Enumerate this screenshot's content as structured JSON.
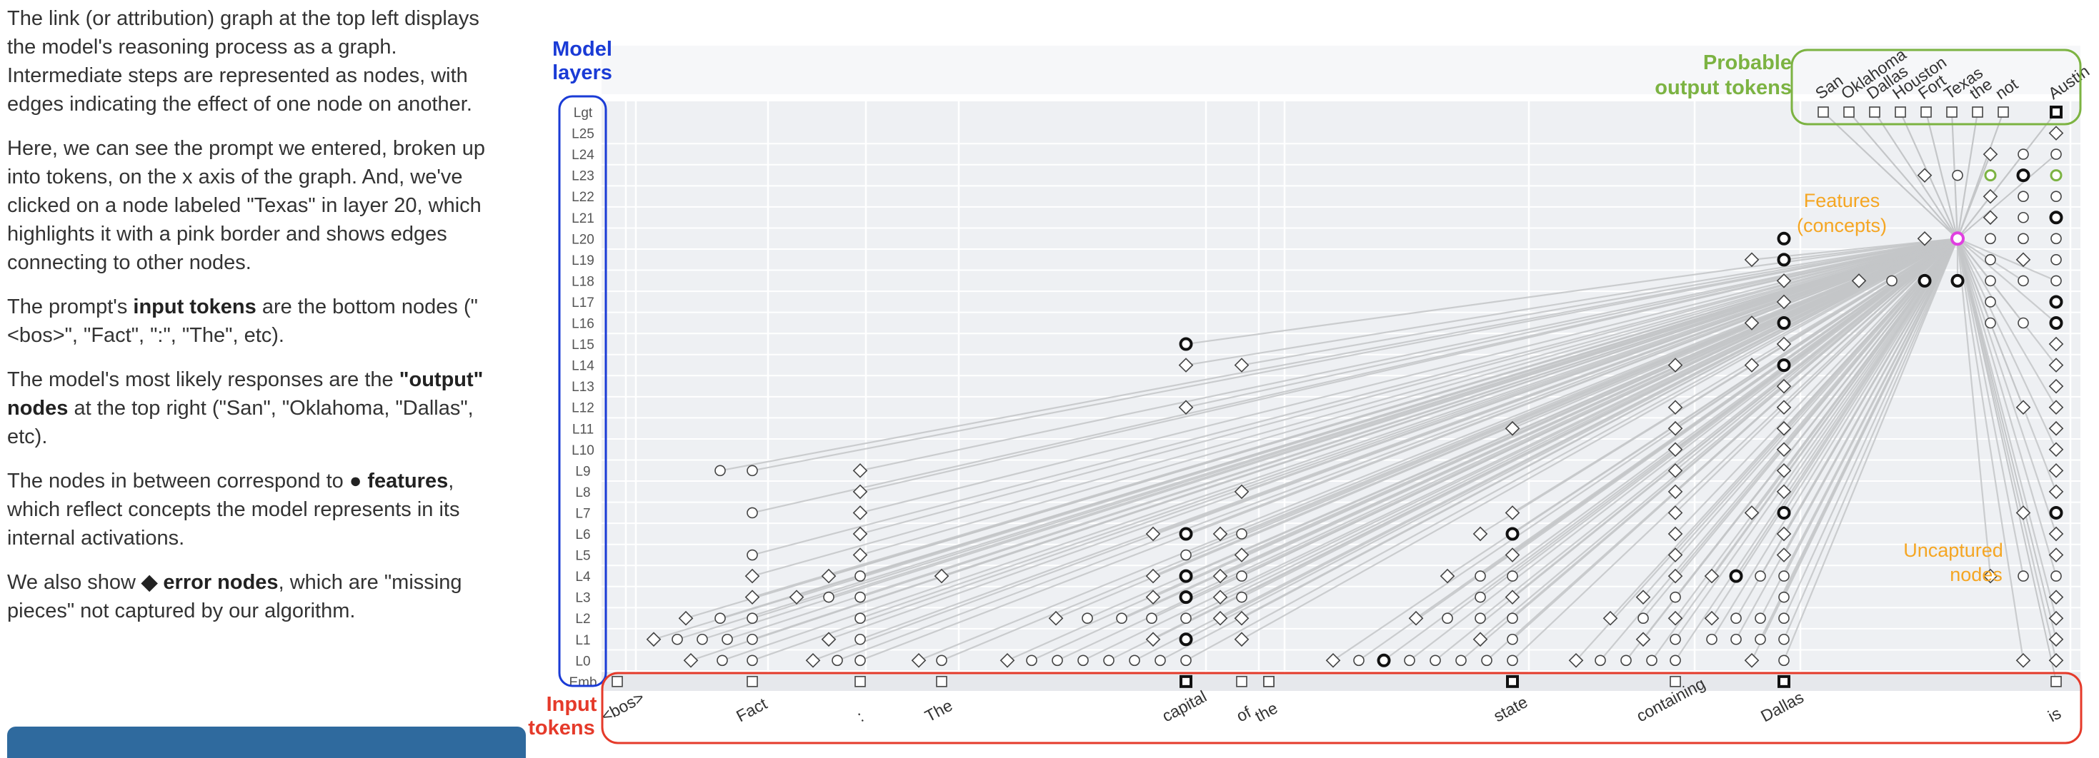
{
  "explanation": {
    "p1": "The link (or attribution) graph at the top left displays the model's reasoning process as a graph. Intermediate steps are represented as nodes, with edges indicating the effect of one node on another.",
    "p2": "Here, we can see the prompt we entered, broken up into tokens, on the x axis of the graph. And, we've clicked on a node labeled \"Texas\" in layer 20, which highlights it with a pink border and shows edges connecting to other nodes.",
    "p3_a": "The prompt's ",
    "p3_b": "input tokens",
    "p3_c": " are the bottom nodes (\"<bos>\", \"Fact\", \":\", \"The\", etc).",
    "p4_a": "The model's most likely responses are the ",
    "p4_b": "\"output\" nodes",
    "p4_c": " at the top right (\"San\", \"Oklahoma, \"Dallas\", etc).",
    "p5_a": "The nodes in between correspond to ",
    "p5_b": "● features",
    "p5_c": ", which reflect concepts the model represents in its internal activations.",
    "p6_a": "We also show ",
    "p6_b": "◆ error nodes",
    "p6_c": ", which are \"missing pieces\" not captured by our algorithm."
  },
  "button": {
    "label": ""
  },
  "annotations": {
    "model_layers": [
      "Model",
      "layers"
    ],
    "probable_output": [
      "Probable",
      "output tokens"
    ],
    "features": [
      "Features",
      "(concepts)"
    ],
    "uncaptured": [
      "Uncaptured",
      "nodes"
    ],
    "input_tokens": [
      "Input",
      "tokens"
    ]
  },
  "colors": {
    "blue": "#1a3bd6",
    "green": "#7cb342",
    "orange": "#f5a623",
    "red": "#e53a2a",
    "selected": "#e040e0"
  },
  "graph": {
    "layers": [
      "Lgt",
      "L25",
      "L24",
      "L23",
      "L22",
      "L21",
      "L20",
      "L19",
      "L18",
      "L17",
      "L16",
      "L15",
      "L14",
      "L13",
      "L12",
      "L11",
      "L10",
      "L9",
      "L8",
      "L7",
      "L6",
      "L5",
      "L4",
      "L3",
      "L2",
      "L1",
      "L0",
      "Emb"
    ],
    "input_tokens": [
      "<bos>",
      "Fact",
      ":",
      "The",
      "capital",
      "of",
      "the",
      "state",
      "containing",
      "Dallas",
      "is"
    ],
    "output_tokens": [
      "San",
      "Oklahoma",
      "Dallas",
      "Houston",
      "Fort",
      "Texas",
      "the",
      "not",
      "Austin"
    ],
    "selected_node": "Texas (L20)"
  }
}
